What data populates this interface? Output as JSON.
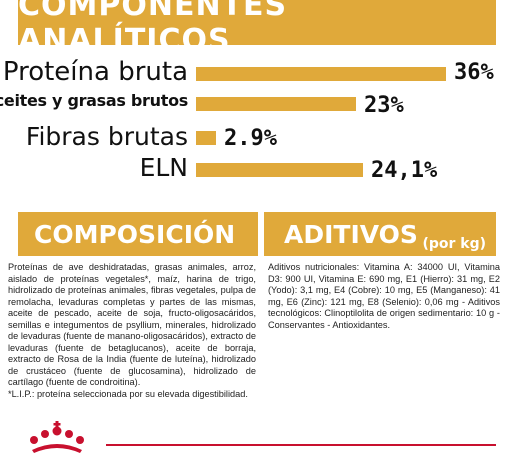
{
  "header": {
    "title": "COMPONENTES ANALÍTICOS"
  },
  "chart_data": {
    "type": "bar",
    "categories": [
      "Proteína bruta",
      "Aceites y grasas brutos",
      "Fibras brutas",
      "ELN"
    ],
    "values": [
      36,
      23,
      2.9,
      24.1
    ],
    "value_labels": [
      "36%",
      "23%",
      "2.9%",
      "24,1%"
    ],
    "colors": {
      "bar": "#e0a93a",
      "band": "#e0a93a"
    }
  },
  "composicion": {
    "title": "COMPOSICIÓN",
    "text": "Proteínas de ave deshidratadas, grasas animales, arroz, aislado de proteínas vegetales*, maíz, harina de trigo, hidrolizado de proteínas animales, fibras vegetales, pulpa de remolacha, levaduras completas y partes de las mismas, aceite de pescado, aceite de soja, fructo-oligosacáridos, semillas e integumentos de psyllium, minerales, hidrolizado de levaduras (fuente de manano-oligosacáridos), extracto de levaduras (fuente de betaglucanos), aceite de borraja, extracto de Rosa de la India (fuente de luteína), hidrolizado de crustáceo (fuente de glucosamina), hidrolizado de cartílago (fuente de condroitina).",
    "footnote": "*L.I.P.: proteína seleccionada por su elevada digestibilidad."
  },
  "aditivos": {
    "title": "ADITIVOS",
    "unit": "(por kg)",
    "text": "Aditivos nutricionales: Vitamina A: 34000 UI, Vitamina D3: 900 UI, Vitamina E: 690 mg, E1 (Hierro): 31 mg, E2 (Yodo): 3,1 mg, E4 (Cobre): 10 mg, E5 (Manganeso): 41 mg, E6 (Zinc): 121 mg, E8 (Selenio): 0,06 mg - Aditivos tecnológicos: Clinoptilolita de origen sedimentario: 10 g - Conservantes - Antioxidantes."
  }
}
